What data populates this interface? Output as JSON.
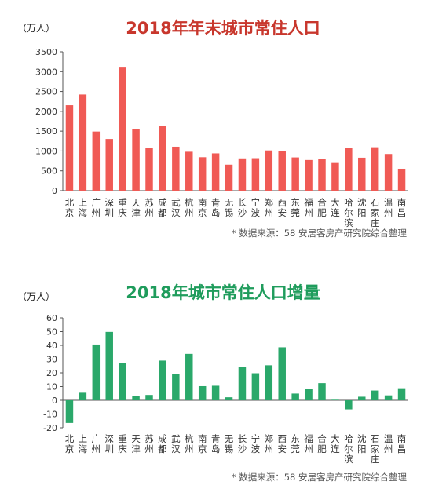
{
  "chart_data": [
    {
      "type": "bar",
      "title": "2018年年末城市常住人口",
      "unit_label": "（万人）",
      "source": "* 数据来源：58 安居客房产研究院综合整理",
      "color": "#f05a55",
      "title_color": "#c8372d",
      "ylim": [
        0,
        3500
      ],
      "yticks": [
        0,
        500,
        1000,
        1500,
        2000,
        2500,
        3000,
        3500
      ],
      "categories": [
        "北京",
        "上海",
        "广州",
        "深圳",
        "重庆",
        "天津",
        "苏州",
        "成都",
        "武汉",
        "杭州",
        "南京",
        "青岛",
        "无锡",
        "长沙",
        "宁波",
        "郑州",
        "西安",
        "东莞",
        "福州",
        "合肥",
        "大连",
        "哈尔滨",
        "沈阳",
        "石家庄",
        "温州",
        "南昌"
      ],
      "values": [
        2154,
        2424,
        1490,
        1303,
        3102,
        1560,
        1072,
        1633,
        1108,
        981,
        844,
        940,
        657,
        815,
        820,
        1014,
        1000,
        839,
        774,
        808,
        699,
        1086,
        832,
        1095,
        925,
        554
      ]
    },
    {
      "type": "bar",
      "title": "2018年城市常住人口增量",
      "unit_label": "（万人）",
      "source": "* 数据来源：58 安居客房产研究院综合整理",
      "color": "#2aa86a",
      "title_color": "#1f9c5c",
      "ylim": [
        -20,
        60
      ],
      "yticks": [
        -20,
        -10,
        0,
        10,
        20,
        30,
        40,
        50,
        60
      ],
      "categories": [
        "北京",
        "上海",
        "广州",
        "深圳",
        "重庆",
        "天津",
        "苏州",
        "成都",
        "武汉",
        "杭州",
        "南京",
        "青岛",
        "无锡",
        "长沙",
        "宁波",
        "郑州",
        "西安",
        "东莞",
        "福州",
        "合肥",
        "大连",
        "哈尔滨",
        "沈阳",
        "石家庄",
        "温州",
        "南昌"
      ],
      "values": [
        -16.5,
        5.5,
        40.6,
        49.8,
        26.9,
        3.2,
        3.9,
        28.9,
        19.2,
        33.8,
        10.3,
        10.6,
        2.2,
        24,
        19.7,
        25.5,
        38.6,
        4.9,
        8,
        12.5,
        0.4,
        -6.6,
        2.6,
        7.1,
        3.6,
        8.2
      ]
    }
  ]
}
